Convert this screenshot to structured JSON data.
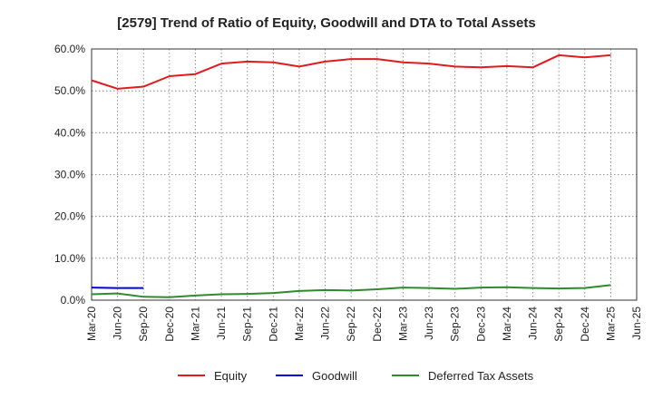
{
  "chart_data": {
    "type": "line",
    "title": "[2579]  Trend of Ratio of Equity, Goodwill and DTA to Total Assets",
    "xlabel": "",
    "ylabel": "",
    "ylim": [
      0,
      60
    ],
    "yticks": [
      0,
      10,
      20,
      30,
      40,
      50,
      60
    ],
    "ytick_labels": [
      "0.0%",
      "10.0%",
      "20.0%",
      "30.0%",
      "40.0%",
      "50.0%",
      "60.0%"
    ],
    "x_labels": [
      "Mar-20",
      "Jun-20",
      "Sep-20",
      "Dec-20",
      "Mar-21",
      "Jun-21",
      "Sep-21",
      "Dec-21",
      "Mar-22",
      "Jun-22",
      "Sep-22",
      "Dec-22",
      "Mar-23",
      "Jun-23",
      "Sep-23",
      "Dec-23",
      "Mar-24",
      "Jun-24",
      "Sep-24",
      "Dec-24",
      "Mar-25",
      "Jun-25"
    ],
    "grid": true,
    "legend_position": "bottom",
    "series": [
      {
        "name": "Equity",
        "color": "#e31a1c",
        "values": [
          52.5,
          50.5,
          51.0,
          53.5,
          54.0,
          56.5,
          57.0,
          56.8,
          55.8,
          57.0,
          57.6,
          57.6,
          56.8,
          56.5,
          55.8,
          55.6,
          55.9,
          55.6,
          58.5,
          58.0,
          58.5,
          null
        ]
      },
      {
        "name": "Goodwill",
        "color": "#0000ee",
        "values": [
          3.0,
          2.9,
          2.9,
          null,
          null,
          null,
          null,
          null,
          null,
          null,
          null,
          null,
          null,
          null,
          null,
          null,
          null,
          null,
          null,
          null,
          null,
          null
        ]
      },
      {
        "name": "Deferred Tax Assets",
        "color": "#2e8b2e",
        "values": [
          1.4,
          1.6,
          0.8,
          0.7,
          1.1,
          1.4,
          1.5,
          1.7,
          2.2,
          2.4,
          2.3,
          2.6,
          3.0,
          2.9,
          2.7,
          3.0,
          3.1,
          2.9,
          2.8,
          2.9,
          3.6,
          null
        ]
      }
    ]
  }
}
